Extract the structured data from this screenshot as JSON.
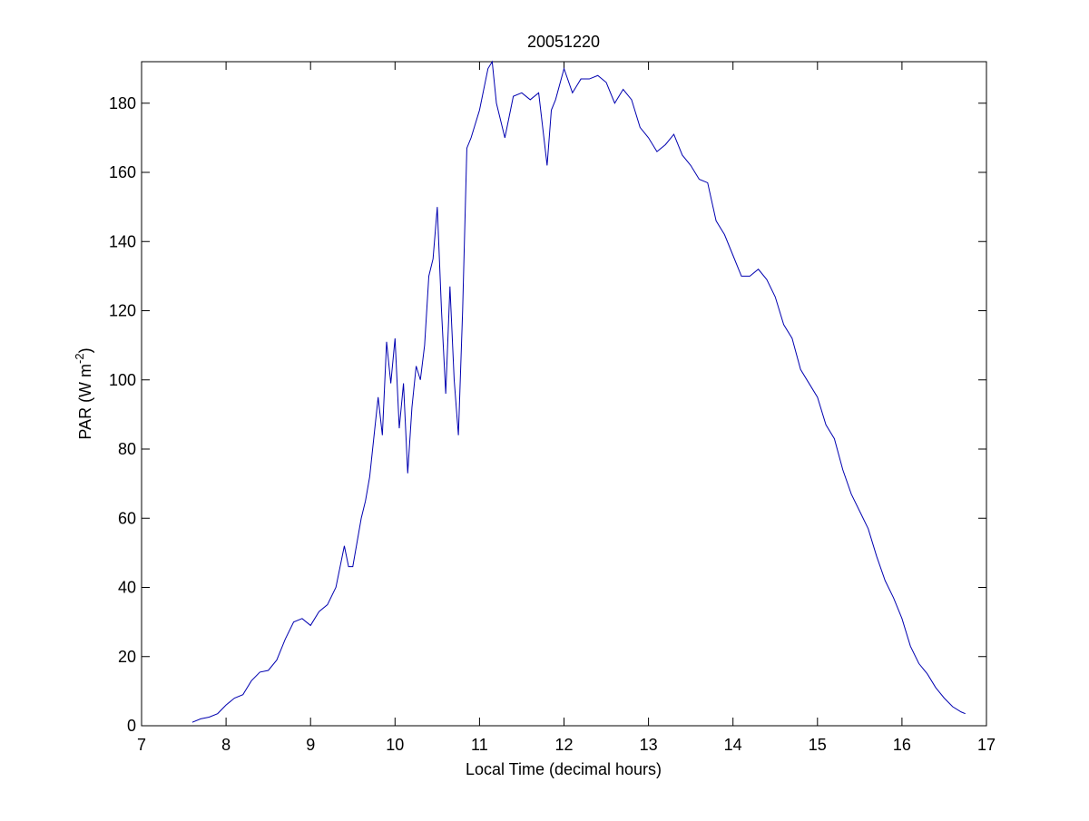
{
  "chart_data": {
    "type": "line",
    "title": "20051220",
    "xlabel": "Local Time (decimal hours)",
    "ylabel_parts": [
      "PAR (W m",
      "-2",
      ")"
    ],
    "color": "#0000b0",
    "x": [
      7.6,
      7.7,
      7.8,
      7.9,
      8.0,
      8.1,
      8.2,
      8.3,
      8.4,
      8.5,
      8.6,
      8.7,
      8.8,
      8.9,
      9.0,
      9.1,
      9.2,
      9.3,
      9.4,
      9.45,
      9.5,
      9.6,
      9.65,
      9.7,
      9.8,
      9.85,
      9.9,
      9.95,
      10.0,
      10.05,
      10.1,
      10.15,
      10.2,
      10.25,
      10.3,
      10.35,
      10.4,
      10.45,
      10.5,
      10.55,
      10.6,
      10.65,
      10.7,
      10.75,
      10.8,
      10.85,
      10.9,
      11.0,
      11.1,
      11.15,
      11.2,
      11.3,
      11.4,
      11.5,
      11.6,
      11.7,
      11.8,
      11.85,
      11.9,
      12.0,
      12.1,
      12.2,
      12.3,
      12.4,
      12.5,
      12.6,
      12.7,
      12.8,
      12.9,
      13.0,
      13.1,
      13.2,
      13.3,
      13.4,
      13.5,
      13.6,
      13.7,
      13.8,
      13.9,
      14.0,
      14.1,
      14.2,
      14.3,
      14.4,
      14.5,
      14.6,
      14.7,
      14.8,
      14.9,
      15.0,
      15.1,
      15.2,
      15.3,
      15.4,
      15.5,
      15.6,
      15.7,
      15.8,
      15.9,
      16.0,
      16.1,
      16.2,
      16.3,
      16.4,
      16.5,
      16.6,
      16.7,
      16.75
    ],
    "values": [
      1,
      2,
      2.5,
      3.5,
      6,
      8,
      9,
      13,
      15.5,
      16,
      19,
      25,
      30,
      31,
      29,
      33,
      35,
      40,
      52,
      46,
      46,
      60,
      65,
      72,
      95,
      84,
      111,
      99,
      112,
      86,
      99,
      73,
      92,
      104,
      100,
      110,
      130,
      135,
      150,
      120,
      96,
      127,
      100,
      84,
      120,
      167,
      170,
      178,
      190,
      192,
      180,
      170,
      182,
      183,
      181,
      183,
      162,
      178,
      181,
      190,
      183,
      187,
      187,
      188,
      186,
      180,
      184,
      181,
      173,
      170,
      166,
      168,
      171,
      165,
      162,
      158,
      157,
      146,
      142,
      136,
      130,
      130,
      132,
      129,
      124,
      116,
      112,
      103,
      99,
      95,
      87,
      83,
      74,
      67,
      62,
      57,
      49,
      42,
      37,
      31,
      23,
      18,
      15,
      11,
      8,
      5.5,
      4,
      3.5
    ],
    "xlim": [
      7,
      17
    ],
    "ylim": [
      0,
      192
    ],
    "xticks": [
      7,
      8,
      9,
      10,
      11,
      12,
      13,
      14,
      15,
      16,
      17
    ],
    "yticks": [
      0,
      20,
      40,
      60,
      80,
      100,
      120,
      140,
      160,
      180
    ]
  }
}
